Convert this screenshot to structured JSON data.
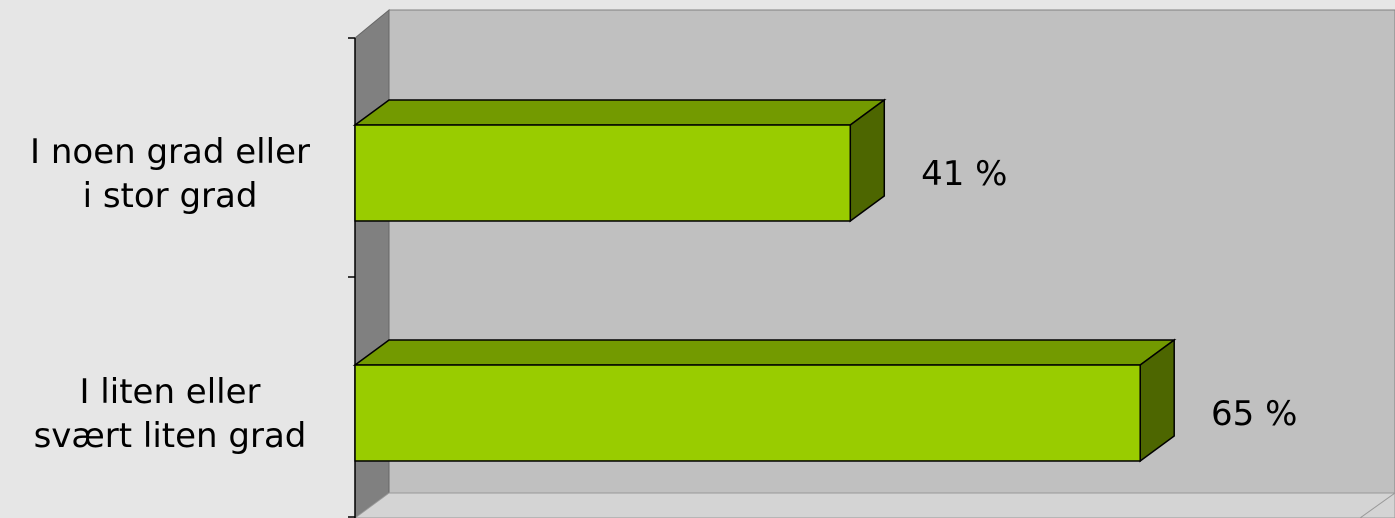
{
  "chart_data": {
    "type": "bar",
    "orientation": "horizontal",
    "style": "3d",
    "categories": [
      [
        "I noen grad eller",
        "i stor grad"
      ],
      [
        "I liten eller",
        "svært liten grad"
      ]
    ],
    "values": [
      41,
      65
    ],
    "data_labels": [
      "41 %",
      "65 %"
    ],
    "value_unit": "%",
    "xlim": [
      0,
      80
    ],
    "grid": false,
    "legend": "none",
    "colors": {
      "bar_front": "#99cc00",
      "bar_top": "#739a00",
      "bar_side": "#4d6600",
      "wall": "#c0c0c0",
      "side_wall": "#808080",
      "floor": "#d4d4d4",
      "background": "#e6e6e6"
    }
  }
}
